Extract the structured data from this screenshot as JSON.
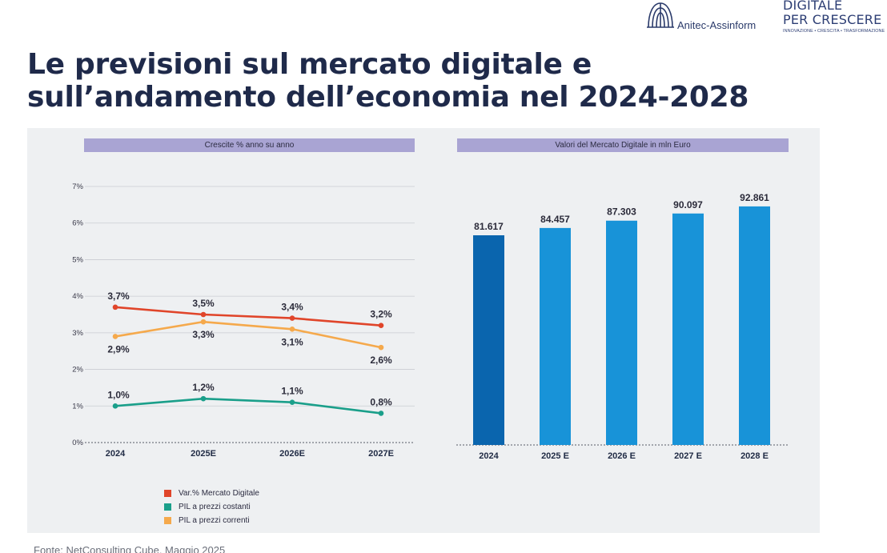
{
  "header": {
    "title": "Le previsioni sul mercato digitale e sull’andamento dell’economia nel 2024-2028",
    "logo_anitec": "Anitec-Assinform",
    "logo_dpc_line1": "DIGITALE",
    "logo_dpc_line2": "PER CRESCERE",
    "logo_dpc_tagline": "INNOVAZIONE • CRESCITA • TRASFORMAZIONE"
  },
  "source": "Fonte: NetConsulting Cube, Maggio 2025",
  "colors": {
    "panel_bg": "#eef0f2",
    "header_bar": "#a9a4d3",
    "mercato": "#e0452a",
    "pil_costanti": "#1a9f8a",
    "pil_correnti": "#f5a94c",
    "bar_actual": "#0a65ae",
    "bar_forecast": "#1893d8"
  },
  "chart_data": [
    {
      "type": "line",
      "title": "Crescite % anno su anno",
      "categories": [
        "2024",
        "2025E",
        "2026E",
        "2027E"
      ],
      "yticks": [
        "0%",
        "1%",
        "2%",
        "3%",
        "4%",
        "5%",
        "6%",
        "7%"
      ],
      "ylim": [
        0,
        7
      ],
      "series": [
        {
          "name": "Var.% Mercato Digitale",
          "values": [
            3.7,
            3.5,
            3.4,
            3.2
          ],
          "labels": [
            "3,7%",
            "3,5%",
            "3,4%",
            "3,2%"
          ]
        },
        {
          "name": "PIL a prezzi costanti",
          "values": [
            1.0,
            1.2,
            1.1,
            0.8
          ],
          "labels": [
            "1,0%",
            "1,2%",
            "1,1%",
            "0,8%"
          ]
        },
        {
          "name": "PIL a prezzi correnti",
          "values": [
            2.9,
            3.3,
            3.1,
            2.6
          ],
          "labels": [
            "2,9%",
            "3,3%",
            "3,1%",
            "2,6%"
          ]
        }
      ]
    },
    {
      "type": "bar",
      "title": "Valori del Mercato Digitale in mln Euro",
      "categories": [
        "2024",
        "2025 E",
        "2026 E",
        "2027 E",
        "2028 E"
      ],
      "values": [
        81617,
        84457,
        87303,
        90097,
        92861
      ],
      "labels": [
        "81.617",
        "84.457",
        "87.303",
        "90.097",
        "92.861"
      ]
    }
  ]
}
